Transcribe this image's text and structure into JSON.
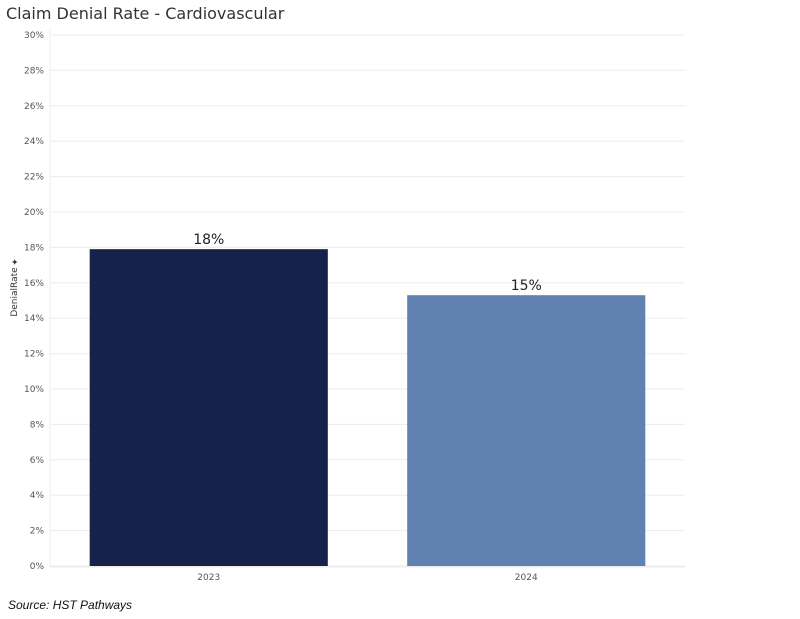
{
  "chart_data": {
    "type": "bar",
    "title": "Claim Denial Rate - Cardiovascular",
    "ylabel": "DenialRate",
    "xlabel": "",
    "categories": [
      "2023",
      "2024"
    ],
    "values": [
      0.179,
      0.153
    ],
    "data_labels": [
      "18%",
      "15%"
    ],
    "ylim": [
      0,
      0.3
    ],
    "yticks": [
      0,
      0.02,
      0.04,
      0.06,
      0.08,
      0.1,
      0.12,
      0.14,
      0.16,
      0.18,
      0.2,
      0.22,
      0.24,
      0.26,
      0.28,
      0.3
    ],
    "ytick_labels": [
      "0%",
      "2%",
      "4%",
      "6%",
      "8%",
      "10%",
      "12%",
      "14%",
      "16%",
      "18%",
      "20%",
      "22%",
      "24%",
      "26%",
      "28%",
      "30%"
    ],
    "colors": [
      "#15224a",
      "#5f82b0"
    ],
    "grid": true,
    "legend": "none"
  },
  "source": "Source: HST Pathways",
  "icons": {
    "ylabel_pin": "pin-icon"
  }
}
